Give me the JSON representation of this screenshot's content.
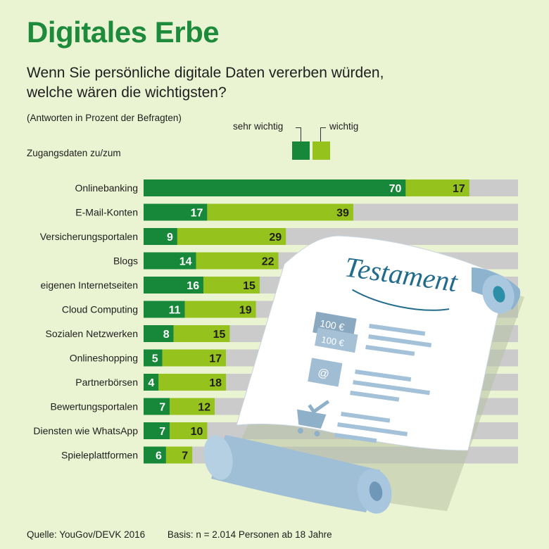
{
  "title": "Digitales Erbe",
  "subtitle_line1": "Wenn Sie persönliche digitale Daten vererben würden,",
  "subtitle_line2": "welche wären die wichtigsten?",
  "note": "(Antworten in Prozent der Befragten)",
  "legend": {
    "sehr_wichtig": "sehr wichtig",
    "wichtig": "wichtig"
  },
  "colors": {
    "sehr_wichtig": "#17873a",
    "wichtig": "#96c21d",
    "track": "#cbcbcb",
    "title": "#1d8a3c"
  },
  "illustration": {
    "scroll_title": "Testament",
    "money_1": "100 €",
    "money_2": "100 €",
    "icons": [
      "banknote-icon",
      "email-envelope-icon",
      "shopping-cart-check-icon"
    ]
  },
  "chart_data": {
    "type": "bar",
    "orientation": "horizontal",
    "stacked": true,
    "ylabel": "Zugangsdaten zu/zum",
    "xlim": [
      0,
      100
    ],
    "legend_position": "top-right",
    "categories": [
      "Onlinebanking",
      "E-Mail-Konten",
      "Versicherungsportalen",
      "Blogs",
      "eigenen Internetseiten",
      "Cloud Computing",
      "Sozialen Netzwerken",
      "Onlineshopping",
      "Partnerbörsen",
      "Bewertungsportalen",
      "Diensten wie WhatsApp",
      "Spieleplattformen"
    ],
    "series": [
      {
        "name": "sehr wichtig",
        "values": [
          70,
          17,
          9,
          14,
          16,
          11,
          8,
          5,
          4,
          7,
          7,
          6
        ]
      },
      {
        "name": "wichtig",
        "values": [
          17,
          39,
          29,
          22,
          15,
          19,
          15,
          17,
          18,
          12,
          10,
          7
        ]
      }
    ]
  },
  "footer": {
    "source": "Quelle: YouGov/DEVK 2016",
    "basis": "Basis: n = 2.014 Personen ab 18 Jahre"
  }
}
